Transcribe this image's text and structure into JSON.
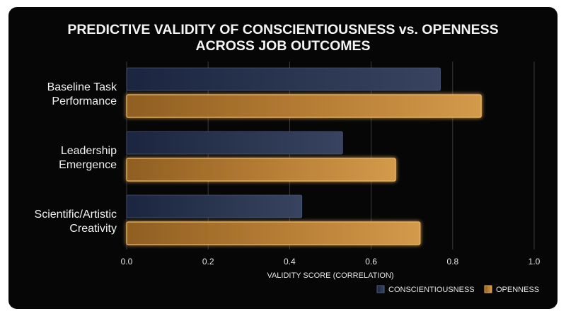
{
  "chart_data": {
    "type": "bar",
    "orientation": "horizontal",
    "title_lines": [
      "PREDICTIVE VALIDITY OF CONSCIENTIOUSNESS vs. OPENNESS",
      "ACROSS JOB OUTCOMES"
    ],
    "categories": [
      [
        "Baseline Task",
        "Performance"
      ],
      [
        "Leadership",
        "Emergence"
      ],
      [
        "Scientific/Artistic",
        "Creativity"
      ]
    ],
    "series": [
      {
        "name": "CONSCIENTIOUSNESS",
        "values": [
          0.77,
          0.53,
          0.43
        ],
        "color": "#2a3552"
      },
      {
        "name": "OPENNESS",
        "values": [
          0.87,
          0.66,
          0.72
        ],
        "color": "#c98d3a"
      }
    ],
    "xlabel": "VALIDITY SCORE (CORRELATION)",
    "xlim": [
      0,
      1.0
    ],
    "xticks": [
      "0.0",
      "0.2",
      "0.4",
      "0.6",
      "0.8",
      "1.0"
    ],
    "grid": true,
    "legend_position": "bottom-right"
  }
}
